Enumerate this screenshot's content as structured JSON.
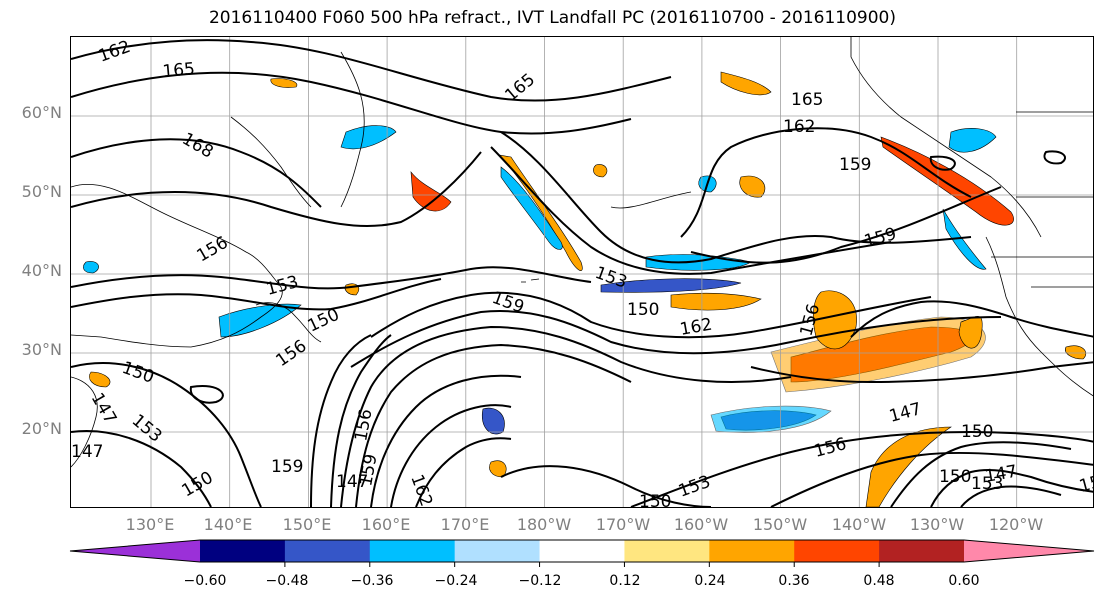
{
  "title": "2016110400 F060 500 hPa refract., IVT Landfall PC (2016110700 - 2016110900)",
  "lat_labels": [
    "60°N",
    "50°N",
    "40°N",
    "30°N",
    "20°N"
  ],
  "lon_labels": [
    "130°E",
    "140°E",
    "150°E",
    "160°E",
    "170°E",
    "180°W",
    "170°W",
    "160°W",
    "150°W",
    "140°W",
    "130°W",
    "120°W"
  ],
  "colorbar": {
    "ticks": [
      "−0.60",
      "−0.48",
      "−0.36",
      "−0.24",
      "−0.12",
      "0.12",
      "0.24",
      "0.36",
      "0.48",
      "0.60"
    ],
    "colors": [
      "#9b30d8",
      "#000080",
      "#3556c8",
      "#00bfff",
      "#b0e0ff",
      "#ffffff",
      "#ffe680",
      "#ffa500",
      "#ff4500",
      "#b22222",
      "#ff88aa"
    ]
  },
  "contour_labels": [
    "162",
    "165",
    "165",
    "165",
    "168",
    "162",
    "159",
    "159",
    "156",
    "153",
    "153",
    "159",
    "150",
    "150",
    "156",
    "162",
    "150",
    "153",
    "147",
    "156",
    "159",
    "150",
    "147",
    "156",
    "150",
    "147",
    "147",
    "150",
    "156",
    "153",
    "150",
    "162",
    "159",
    "153",
    "147",
    "156"
  ],
  "map_colors": {
    "contour": "#000000",
    "land": "#000000",
    "grid": "#a0a0a0"
  }
}
